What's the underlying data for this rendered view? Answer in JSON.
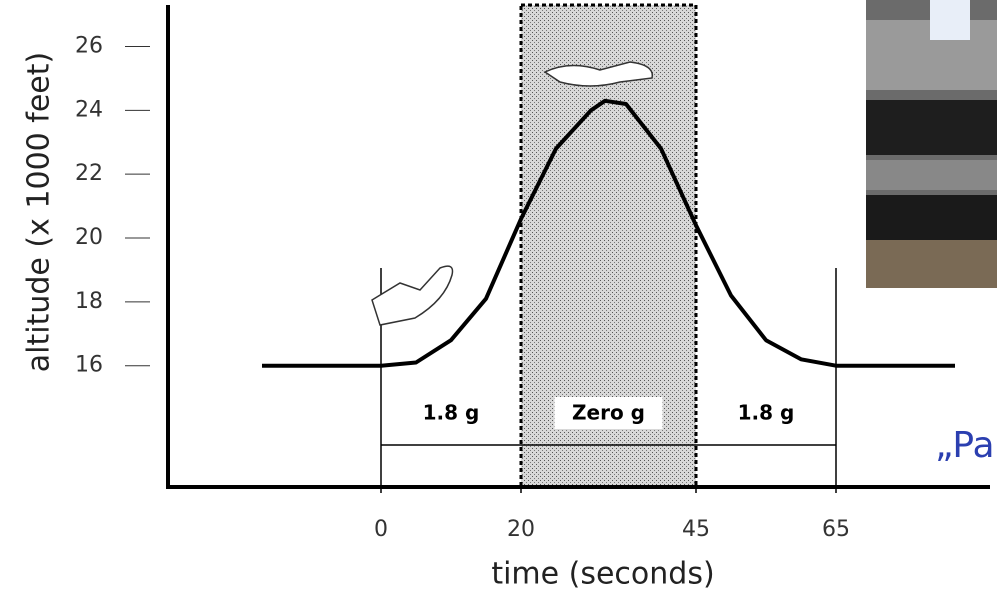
{
  "chart_data": {
    "type": "line",
    "x_label": "time (seconds)",
    "y_label": "altitude (x 1000 feet)",
    "x": [
      -17,
      0,
      5,
      10,
      15,
      20,
      25,
      30,
      32,
      35,
      40,
      45,
      50,
      55,
      60,
      65,
      82
    ],
    "values": [
      16,
      16,
      16.1,
      16.8,
      18.1,
      20.6,
      22.8,
      24.0,
      24.3,
      24.2,
      22.8,
      20.4,
      18.2,
      16.8,
      16.2,
      16,
      16
    ],
    "color": "#000000",
    "xlim": [
      -30,
      87
    ],
    "xticks": [
      0,
      20,
      45,
      65
    ],
    "ylim": [
      12.2,
      27.3
    ],
    "yticks": [
      16,
      18,
      20,
      22,
      24,
      26
    ],
    "phases": [
      {
        "label": "1.8 g",
        "start": 0,
        "end": 20
      },
      {
        "label": "Zero g",
        "start": 20,
        "end": 45
      },
      {
        "label": "1.8 g",
        "start": 45,
        "end": 65
      }
    ],
    "annotation": "„Pa"
  }
}
